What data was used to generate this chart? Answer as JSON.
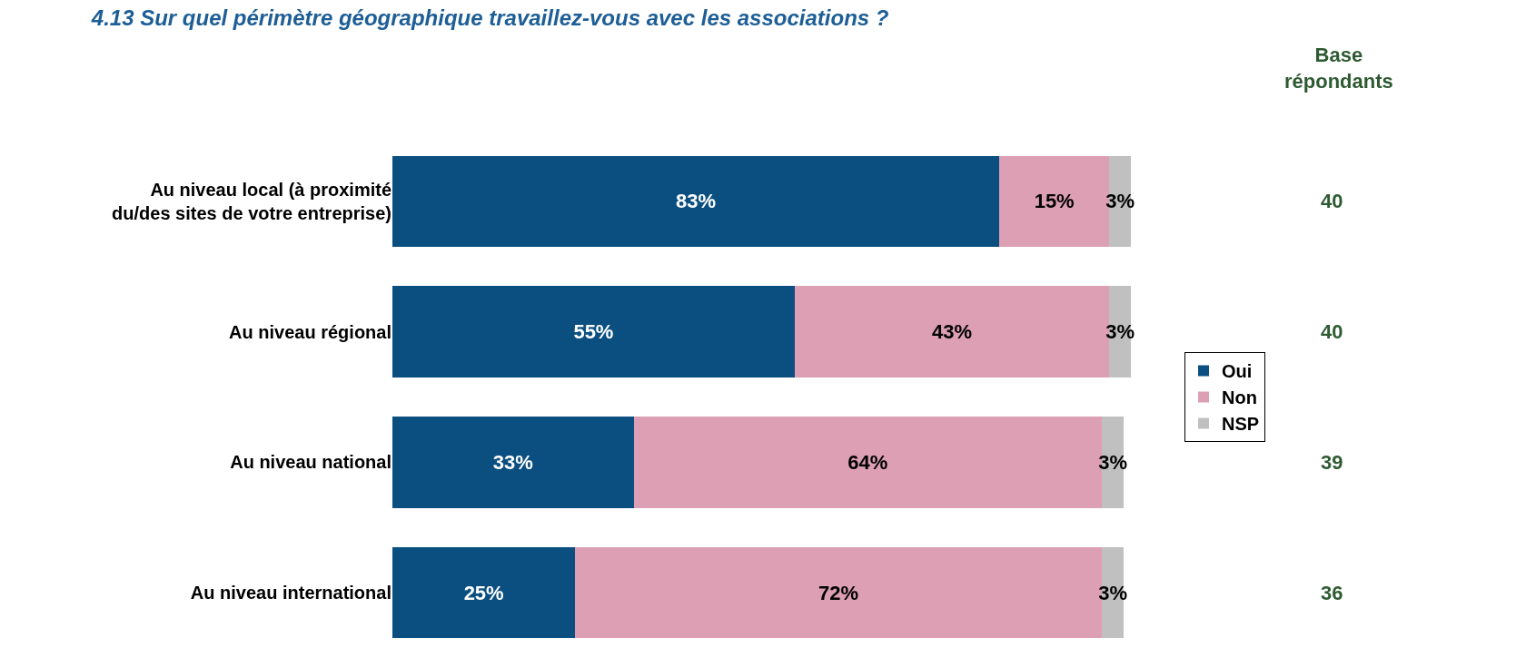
{
  "chart_data": {
    "type": "bar",
    "orientation": "horizontal",
    "stacked": true,
    "title": "4.13 Sur quel périmètre géographique travaillez-vous avec les associations ?",
    "categories": [
      "Au niveau local (à proximité\ndu/des sites de votre entreprise)",
      "Au niveau régional",
      "Au niveau national",
      "Au niveau international"
    ],
    "series": [
      {
        "name": "Oui",
        "color": "#0b4f80",
        "values": [
          83,
          55,
          33,
          25
        ],
        "value_labels": [
          "83%",
          "55%",
          "33%",
          "25%"
        ]
      },
      {
        "name": "Non",
        "color": "#dc9fb4",
        "values": [
          15,
          43,
          64,
          72
        ],
        "value_labels": [
          "15%",
          "43%",
          "64%",
          "72%"
        ]
      },
      {
        "name": "NSP",
        "color": "#c0c0c0",
        "values": [
          3,
          3,
          3,
          3
        ],
        "value_labels": [
          "3%",
          "3%",
          "3%",
          "3%"
        ]
      }
    ],
    "legend": "right",
    "annotations": [
      "Base\nrépondants",
      "40",
      "40",
      "39",
      "36"
    ]
  }
}
